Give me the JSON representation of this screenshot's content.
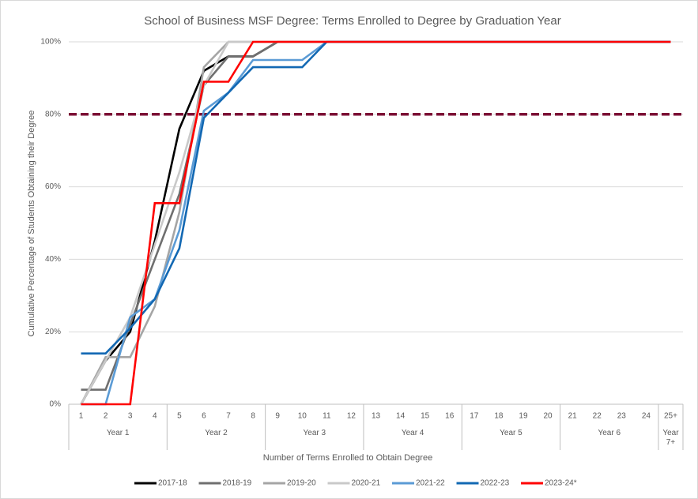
{
  "chart_data": {
    "type": "line",
    "title": "School of Business MSF Degree: Terms Enrolled to Degree by Graduation Year",
    "x_label": "Number of Terms Enrolled to Obtain Degree",
    "y_label": "Cumulative Percentage of Students Obtaining their Degree",
    "categories": [
      "1",
      "2",
      "3",
      "4",
      "5",
      "6",
      "7",
      "8",
      "9",
      "10",
      "11",
      "12",
      "13",
      "14",
      "15",
      "16",
      "17",
      "18",
      "19",
      "20",
      "21",
      "22",
      "23",
      "24",
      "25+"
    ],
    "groups": [
      {
        "label": "Year 1",
        "size": 4
      },
      {
        "label": "Year 2",
        "size": 4
      },
      {
        "label": "Year 3",
        "size": 4
      },
      {
        "label": "Year 4",
        "size": 4
      },
      {
        "label": "Year 5",
        "size": 4
      },
      {
        "label": "Year 6",
        "size": 4
      },
      {
        "label": "Year 7+",
        "size": 1
      }
    ],
    "ylim": [
      0,
      100
    ],
    "yticks": [
      {
        "value": 0,
        "label": "0%"
      },
      {
        "value": 20,
        "label": "20%"
      },
      {
        "value": 40,
        "label": "40%"
      },
      {
        "value": 60,
        "label": "60%"
      },
      {
        "value": 80,
        "label": "80%"
      },
      {
        "value": 100,
        "label": "100%"
      }
    ],
    "grid": true,
    "legend": "bottom",
    "reference_line": {
      "value": 80,
      "color": "#7b0f35"
    },
    "series": [
      {
        "name": "2017-18",
        "color": "#000000",
        "values": [
          0,
          12,
          20,
          45,
          76,
          92,
          96,
          96,
          100,
          100,
          100,
          100,
          100,
          100,
          100,
          100,
          100,
          100,
          100,
          100,
          100,
          100,
          100,
          100,
          100
        ]
      },
      {
        "name": "2018-19",
        "color": "#6f6f6f",
        "values": [
          4,
          4,
          22,
          40,
          58,
          88,
          96,
          96,
          100,
          100,
          100,
          100,
          100,
          100,
          100,
          100,
          100,
          100,
          100,
          100,
          100,
          100,
          100,
          100,
          100
        ]
      },
      {
        "name": "2019-20",
        "color": "#a5a5a5",
        "values": [
          0,
          13,
          13,
          27,
          53,
          93,
          100,
          100,
          100,
          100,
          100,
          100,
          100,
          100,
          100,
          100,
          100,
          100,
          100,
          100,
          100,
          100,
          100,
          100,
          100
        ]
      },
      {
        "name": "2020-21",
        "color": "#c9c9c9",
        "values": [
          0,
          12,
          24,
          44,
          64,
          88,
          100,
          100,
          100,
          100,
          100,
          100,
          100,
          100,
          100,
          100,
          100,
          100,
          100,
          100,
          100,
          100,
          100,
          100,
          100
        ]
      },
      {
        "name": "2021-22",
        "color": "#5b9bd5",
        "values": [
          0,
          0,
          24,
          29,
          48,
          81,
          86,
          95,
          95,
          95,
          100,
          100,
          100,
          100,
          100,
          100,
          100,
          100,
          100,
          100,
          100,
          100,
          100,
          100,
          100
        ]
      },
      {
        "name": "2022-23",
        "color": "#1268b3",
        "values": [
          14,
          14,
          21,
          29,
          43,
          79,
          86,
          93,
          93,
          93,
          100,
          100,
          100,
          100,
          100,
          100,
          100,
          100,
          100,
          100,
          100,
          100,
          100,
          100,
          100
        ]
      },
      {
        "name": "2023-24*",
        "color": "#ff0000",
        "values": [
          0,
          0,
          0,
          55.5,
          55.5,
          89,
          89,
          100,
          100,
          100,
          100,
          100,
          100,
          100,
          100,
          100,
          100,
          100,
          100,
          100,
          100,
          100,
          100,
          100,
          100
        ]
      }
    ]
  }
}
